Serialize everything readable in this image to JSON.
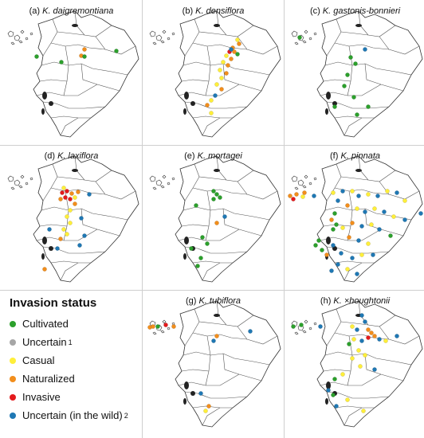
{
  "figure": {
    "panels": [
      {
        "letter": "(a)",
        "species": "K. daigremontiana",
        "points": [
          [
            75,
            76,
            "Cultivated"
          ],
          [
            44,
            69,
            "Cultivated"
          ],
          [
            104,
            60,
            "Naturalized"
          ],
          [
            100,
            68,
            "Naturalized"
          ],
          [
            144,
            62,
            "Cultivated"
          ],
          [
            104,
            69,
            "Cultivated"
          ]
        ]
      },
      {
        "letter": "(b)",
        "species": "K. densiflora",
        "points": [
          [
            118,
            48,
            "Casual"
          ],
          [
            120,
            53,
            "Naturalized"
          ],
          [
            112,
            58,
            "Naturalized"
          ],
          [
            108,
            63,
            "Invasive"
          ],
          [
            114,
            63,
            "Naturalized"
          ],
          [
            104,
            68,
            "Casual"
          ],
          [
            110,
            72,
            "Naturalized"
          ],
          [
            100,
            76,
            "Casual"
          ],
          [
            106,
            80,
            "Naturalized"
          ],
          [
            96,
            86,
            "Casual"
          ],
          [
            104,
            90,
            "Naturalized"
          ],
          [
            98,
            96,
            "Casual"
          ],
          [
            110,
            60,
            "Uncertain (in the wild)"
          ],
          [
            92,
            104,
            "Casual"
          ],
          [
            98,
            110,
            "Naturalized"
          ],
          [
            90,
            118,
            "Uncertain (in the wild)"
          ],
          [
            85,
            124,
            "Casual"
          ],
          [
            80,
            130,
            "Naturalized"
          ],
          [
            118,
            66,
            "Cultivated"
          ],
          [
            85,
            140,
            "Casual"
          ]
        ]
      },
      {
        "letter": "(c)",
        "species": "K. gastonis-bonnieri",
        "points": [
          [
            18,
            45,
            "Cultivated"
          ],
          [
            82,
            70,
            "Cultivated"
          ],
          [
            88,
            78,
            "Cultivated"
          ],
          [
            78,
            92,
            "Cultivated"
          ],
          [
            74,
            106,
            "Cultivated"
          ],
          [
            86,
            120,
            "Cultivated"
          ],
          [
            62,
            132,
            "Cultivated"
          ],
          [
            104,
            132,
            "Cultivated"
          ],
          [
            90,
            142,
            "Cultivated"
          ],
          [
            100,
            60,
            "Uncertain (in the wild)"
          ]
        ]
      },
      {
        "letter": "(d)",
        "species": "K. laxiflora",
        "points": [
          [
            76,
            58,
            "Invasive"
          ],
          [
            82,
            56,
            "Invasive"
          ],
          [
            88,
            59,
            "Naturalized"
          ],
          [
            80,
            64,
            "Invasive"
          ],
          [
            86,
            66,
            "Invasive"
          ],
          [
            74,
            66,
            "Naturalized"
          ],
          [
            92,
            64,
            "Casual"
          ],
          [
            96,
            57,
            "Naturalized"
          ],
          [
            78,
            52,
            "Casual"
          ],
          [
            92,
            72,
            "Naturalized"
          ],
          [
            86,
            80,
            "Casual"
          ],
          [
            82,
            88,
            "Casual"
          ],
          [
            86,
            96,
            "Casual"
          ],
          [
            78,
            104,
            "Casual"
          ],
          [
            82,
            110,
            "Casual"
          ],
          [
            74,
            116,
            "Naturalized"
          ],
          [
            100,
            90,
            "Uncertain (in the wild)"
          ],
          [
            104,
            112,
            "Uncertain (in the wild)"
          ],
          [
            98,
            124,
            "Uncertain (in the wild)"
          ],
          [
            60,
            104,
            "Uncertain (in the wild)"
          ],
          [
            70,
            128,
            "Uncertain (in the wild)"
          ],
          [
            110,
            60,
            "Uncertain (in the wild)"
          ],
          [
            54,
            154,
            "Naturalized"
          ]
        ]
      },
      {
        "letter": "(e)",
        "species": "K. mortagei",
        "points": [
          [
            88,
            56,
            "Cultivated"
          ],
          [
            92,
            60,
            "Cultivated"
          ],
          [
            88,
            66,
            "Cultivated"
          ],
          [
            96,
            64,
            "Cultivated"
          ],
          [
            66,
            74,
            "Cultivated"
          ],
          [
            92,
            96,
            "Naturalized"
          ],
          [
            74,
            114,
            "Cultivated"
          ],
          [
            80,
            122,
            "Cultivated"
          ],
          [
            60,
            128,
            "Cultivated"
          ],
          [
            72,
            140,
            "Cultivated"
          ],
          [
            68,
            150,
            "Cultivated"
          ],
          [
            102,
            88,
            "Uncertain (in the wild)"
          ]
        ]
      },
      {
        "letter": "(f)",
        "species": "K. pinnata",
        "points": [
          [
            6,
            62,
            "Naturalized"
          ],
          [
            10,
            66,
            "Invasive"
          ],
          [
            14,
            60,
            "Naturalized"
          ],
          [
            24,
            58,
            "Naturalized"
          ],
          [
            36,
            62,
            "Uncertain (in the wild)"
          ],
          [
            22,
            63,
            "Casual"
          ],
          [
            60,
            58,
            "Casual"
          ],
          [
            72,
            56,
            "Uncertain (in the wild)"
          ],
          [
            84,
            56,
            "Casual"
          ],
          [
            92,
            62,
            "Uncertain (in the wild)"
          ],
          [
            104,
            60,
            "Casual"
          ],
          [
            116,
            62,
            "Uncertain (in the wild)"
          ],
          [
            128,
            56,
            "Casual"
          ],
          [
            140,
            58,
            "Uncertain (in the wild)"
          ],
          [
            150,
            68,
            "Casual"
          ],
          [
            66,
            68,
            "Uncertain (in the wild)"
          ],
          [
            78,
            74,
            "Naturalized"
          ],
          [
            90,
            78,
            "Casual"
          ],
          [
            100,
            82,
            "Uncertain (in the wild)"
          ],
          [
            112,
            78,
            "Casual"
          ],
          [
            124,
            82,
            "Uncertain (in the wild)"
          ],
          [
            136,
            88,
            "Casual"
          ],
          [
            150,
            92,
            "Uncertain (in the wild)"
          ],
          [
            170,
            84,
            "Uncertain (in the wild)"
          ],
          [
            62,
            84,
            "Cultivated"
          ],
          [
            58,
            92,
            "Naturalized"
          ],
          [
            64,
            98,
            "Cultivated"
          ],
          [
            60,
            104,
            "Cultivated"
          ],
          [
            72,
            102,
            "Casual"
          ],
          [
            84,
            96,
            "Naturalized"
          ],
          [
            96,
            100,
            "Uncertain (in the wild)"
          ],
          [
            108,
            98,
            "Casual"
          ],
          [
            118,
            104,
            "Uncertain (in the wild)"
          ],
          [
            80,
            114,
            "Naturalized"
          ],
          [
            92,
            118,
            "Uncertain (in the wild)"
          ],
          [
            104,
            122,
            "Casual"
          ],
          [
            60,
            124,
            "Uncertain (in the wild)"
          ],
          [
            70,
            134,
            "Uncertain (in the wild)"
          ],
          [
            84,
            140,
            "Uncertain (in the wild)"
          ],
          [
            96,
            136,
            "Casual"
          ],
          [
            110,
            136,
            "Uncertain (in the wild)"
          ],
          [
            66,
            148,
            "Uncertain (in the wild)"
          ],
          [
            78,
            154,
            "Casual"
          ],
          [
            90,
            160,
            "Uncertain (in the wild)"
          ],
          [
            58,
            156,
            "Uncertain (in the wild)"
          ],
          [
            132,
            112,
            "Cultivated"
          ],
          [
            42,
            118,
            "Cultivated"
          ],
          [
            38,
            124,
            "Cultivated"
          ],
          [
            46,
            130,
            "Cultivated"
          ],
          [
            52,
            136,
            "Naturalized"
          ]
        ]
      },
      {
        "letter": "(g)",
        "species": "K. tubiflora",
        "points": [
          [
            8,
            45,
            "Naturalized"
          ],
          [
            12,
            44,
            "Naturalized"
          ],
          [
            18,
            44,
            "Cultivated"
          ],
          [
            28,
            42,
            "Invasive"
          ],
          [
            38,
            44,
            "Naturalized"
          ],
          [
            92,
            56,
            "Naturalized"
          ],
          [
            88,
            62,
            "Uncertain (in the wild)"
          ],
          [
            134,
            50,
            "Uncertain (in the wild)"
          ],
          [
            72,
            128,
            "Uncertain (in the wild)"
          ],
          [
            82,
            144,
            "Naturalized"
          ],
          [
            78,
            150,
            "Casual"
          ]
        ]
      },
      {
        "letter": "(h)",
        "species": "K. ×houghtonii",
        "points": [
          [
            10,
            44,
            "Cultivated"
          ],
          [
            20,
            42,
            "Cultivated"
          ],
          [
            44,
            44,
            "Uncertain (in the wild)"
          ],
          [
            96,
            30,
            "Uncertain (in the wild)"
          ],
          [
            100,
            38,
            "Uncertain (in the wild)"
          ],
          [
            84,
            44,
            "Casual"
          ],
          [
            90,
            48,
            "Uncertain (in the wild)"
          ],
          [
            104,
            48,
            "Naturalized"
          ],
          [
            108,
            52,
            "Naturalized"
          ],
          [
            112,
            56,
            "Naturalized"
          ],
          [
            104,
            58,
            "Invasive"
          ],
          [
            96,
            62,
            "Uncertain (in the wild)"
          ],
          [
            86,
            60,
            "Casual"
          ],
          [
            80,
            66,
            "Cultivated"
          ],
          [
            118,
            60,
            "Uncertain (in the wild)"
          ],
          [
            126,
            62,
            "Casual"
          ],
          [
            140,
            56,
            "Uncertain (in the wild)"
          ],
          [
            92,
            74,
            "Casual"
          ],
          [
            100,
            80,
            "Casual"
          ],
          [
            84,
            84,
            "Casual"
          ],
          [
            94,
            94,
            "Casual"
          ],
          [
            112,
            98,
            "Uncertain (in the wild)"
          ],
          [
            72,
            104,
            "Casual"
          ],
          [
            62,
            110,
            "Cultivated"
          ],
          [
            54,
            124,
            "Uncertain (in the wild)"
          ],
          [
            60,
            130,
            "Cultivated"
          ],
          [
            78,
            136,
            "Casual"
          ],
          [
            64,
            144,
            "Uncertain (in the wild)"
          ],
          [
            98,
            150,
            "Casual"
          ]
        ]
      }
    ]
  },
  "legend": {
    "title": "Invasion status",
    "items": [
      {
        "label": "Cultivated",
        "color": "#2ca02c",
        "sup": ""
      },
      {
        "label": "Uncertain",
        "color": "#a6a6a6",
        "sup": "1"
      },
      {
        "label": "Casual",
        "color": "#ffef3a",
        "sup": ""
      },
      {
        "label": "Naturalized",
        "color": "#f28e1c",
        "sup": ""
      },
      {
        "label": "Invasive",
        "color": "#e41a1c",
        "sup": ""
      },
      {
        "label": "Uncertain (in the wild)",
        "color": "#1f78b4",
        "sup": "2"
      }
    ]
  }
}
